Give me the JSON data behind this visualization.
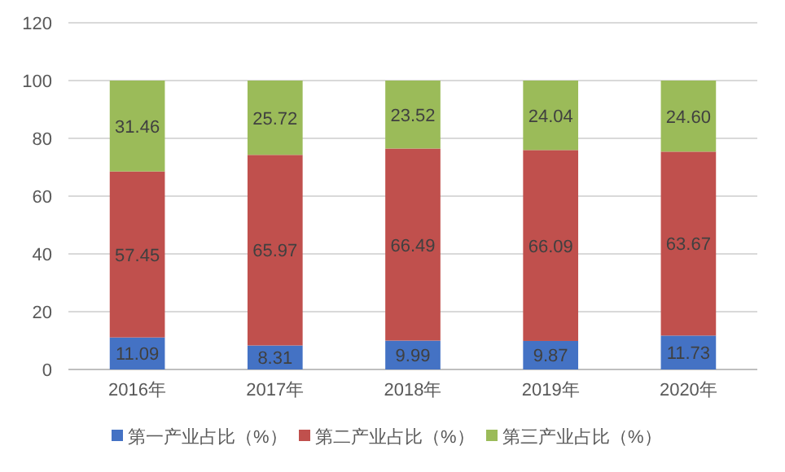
{
  "chart_data": {
    "type": "bar",
    "stacked": true,
    "categories": [
      "2016年",
      "2017年",
      "2018年",
      "2019年",
      "2020年"
    ],
    "series": [
      {
        "name": "第一产业占比（%）",
        "color": "#4472c4",
        "values": [
          11.09,
          8.31,
          9.99,
          9.87,
          11.73
        ],
        "value_labels": [
          "11.09",
          "8.31",
          "9.99",
          "9.87",
          "11.73"
        ]
      },
      {
        "name": "第二产业占比（%）",
        "color": "#c0504d",
        "values": [
          57.45,
          65.97,
          66.49,
          66.09,
          63.67
        ],
        "value_labels": [
          "57.45",
          "65.97",
          "66.49",
          "66.09",
          "63.67"
        ]
      },
      {
        "name": "第三产业占比（%）",
        "color": "#9bbb59",
        "values": [
          31.46,
          25.72,
          23.52,
          24.04,
          24.6
        ],
        "value_labels": [
          "31.46",
          "25.72",
          "23.52",
          "24.04",
          "24.60"
        ]
      }
    ],
    "ylim": [
      0,
      120
    ],
    "yticks": [
      0,
      20,
      40,
      60,
      80,
      100,
      120
    ],
    "grid": "y",
    "legend": "bottom"
  }
}
